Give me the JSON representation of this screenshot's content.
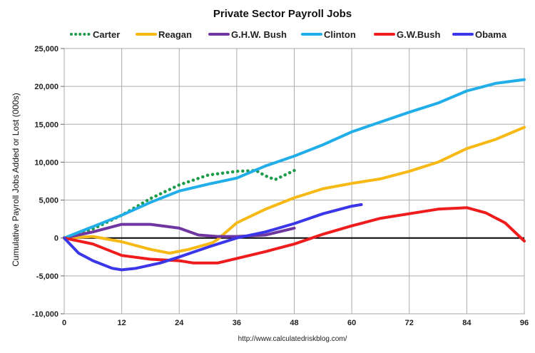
{
  "chart_data": {
    "type": "line",
    "title": "Private Sector Payroll Jobs",
    "xlabel": "",
    "ylabel": "Cumulative Payroll Jobs Added or  Lost (000s)",
    "source": "http://www.calculatedriskblog.com/",
    "xlim": [
      0,
      96
    ],
    "ylim": [
      -10000,
      25000
    ],
    "xticks": [
      0,
      12,
      24,
      36,
      48,
      60,
      72,
      84,
      96
    ],
    "yticks": [
      -10000,
      -5000,
      0,
      5000,
      10000,
      15000,
      20000,
      25000
    ],
    "ytick_labels": [
      "-10,000",
      "-5,000",
      "0",
      "5,000",
      "10,000",
      "15,000",
      "20,000",
      "25,000"
    ],
    "grid": true,
    "legend_position": "top",
    "series": [
      {
        "name": "Carter",
        "color": "#1e9b4a",
        "dotted": true,
        "x": [
          0,
          6,
          12,
          18,
          24,
          30,
          36,
          40,
          42,
          44,
          46,
          48
        ],
        "y": [
          0,
          1200,
          3000,
          5200,
          7000,
          8300,
          8800,
          8900,
          8200,
          7700,
          8300,
          8900
        ]
      },
      {
        "name": "Reagan",
        "color": "#f6b915",
        "x": [
          0,
          6,
          12,
          18,
          22,
          26,
          30,
          31,
          32,
          36,
          42,
          48,
          54,
          60,
          66,
          72,
          78,
          84,
          90,
          96
        ],
        "y": [
          0,
          200,
          -500,
          -1500,
          -2000,
          -1500,
          -800,
          -600,
          -200,
          2000,
          3800,
          5300,
          6500,
          7200,
          7800,
          8800,
          10000,
          11800,
          13000,
          14600
        ]
      },
      {
        "name": "G.H.W. Bush",
        "color": "#6f35a0",
        "x": [
          0,
          6,
          12,
          18,
          24,
          28,
          32,
          36,
          42,
          48
        ],
        "y": [
          0,
          800,
          1800,
          1800,
          1300,
          400,
          200,
          200,
          400,
          1300
        ]
      },
      {
        "name": "Clinton",
        "color": "#21aee8",
        "x": [
          0,
          6,
          12,
          18,
          24,
          30,
          36,
          42,
          48,
          54,
          60,
          66,
          72,
          78,
          84,
          90,
          96
        ],
        "y": [
          0,
          1500,
          3000,
          4700,
          6200,
          7100,
          7900,
          9500,
          10800,
          12300,
          14000,
          15300,
          16600,
          17800,
          19400,
          20400,
          20900
        ]
      },
      {
        "name": "G.W.Bush",
        "color": "#ee1c1c",
        "x": [
          0,
          6,
          12,
          18,
          24,
          27,
          32,
          36,
          42,
          48,
          54,
          60,
          66,
          72,
          78,
          84,
          88,
          92,
          96
        ],
        "y": [
          0,
          -800,
          -2300,
          -2800,
          -3000,
          -3300,
          -3300,
          -2700,
          -1800,
          -800,
          500,
          1600,
          2600,
          3200,
          3800,
          4000,
          3300,
          2000,
          -400
        ]
      },
      {
        "name": "Obama",
        "color": "#3b36e8",
        "x": [
          0,
          3,
          6,
          10,
          12,
          15,
          20,
          24,
          30,
          36,
          42,
          48,
          54,
          60,
          62
        ],
        "y": [
          0,
          -2000,
          -3000,
          -4000,
          -4200,
          -4000,
          -3300,
          -2500,
          -1200,
          0,
          800,
          1900,
          3200,
          4200,
          4400
        ]
      }
    ]
  }
}
